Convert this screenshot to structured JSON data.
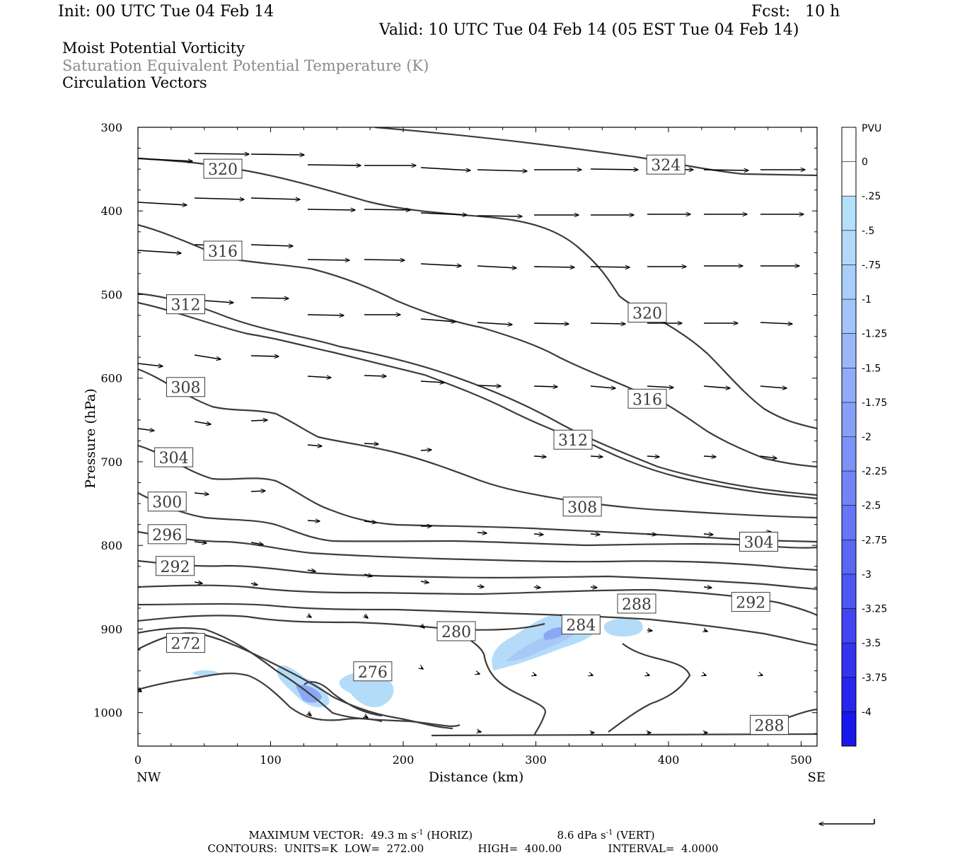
{
  "header": {
    "init": "Init: 00 UTC Tue 04 Feb 14",
    "fcst": "Fcst:   10 h",
    "valid": "Valid: 10 UTC Tue 04 Feb 14 (05 EST Tue 04 Feb 14)",
    "field1": "Moist Potential Vorticity",
    "field2": "Saturation Equivalent Potential Temperature (K)",
    "field3": "Circulation Vectors"
  },
  "colors": {
    "contour": "#3c3c3c",
    "fill_light": "#b4dcf8",
    "fill_mid": "#a8c8f8",
    "fill_dark": "#8aa8f4"
  },
  "chart_data": {
    "type": "contour",
    "xlabel": "Distance (km)",
    "ylabel": "Pressure (hPa)",
    "xlim": [
      0,
      512
    ],
    "ylim": [
      1040,
      300
    ],
    "x_ticks": [
      "0",
      "100",
      "200",
      "300",
      "400",
      "500"
    ],
    "y_ticks": [
      "300",
      "400",
      "500",
      "600",
      "700",
      "800",
      "900",
      "1000"
    ],
    "x_end_labels": {
      "left": "NW",
      "right": "SE"
    },
    "colorbar": {
      "unit": "PVU",
      "labels": [
        "0",
        "-.25",
        "-.5",
        "-.75",
        "-1",
        "-1.25",
        "-1.5",
        "-1.75",
        "-2",
        "-2.25",
        "-2.5",
        "-2.75",
        "-3",
        "-3.25",
        "-3.5",
        "-3.75",
        "-4"
      ],
      "colors": [
        "#ffffff",
        "#ffffff",
        "#b4e0fa",
        "#b4d8fa",
        "#aacefa",
        "#a2c4f8",
        "#9ab8f8",
        "#90acf8",
        "#86a0f8",
        "#7c92f6",
        "#7284f6",
        "#6676f6",
        "#5a66f4",
        "#4e56f4",
        "#4246f2",
        "#3434f0",
        "#2626ee",
        "#1818ea"
      ]
    },
    "contour_labels": [
      {
        "text": "324",
        "x": 398,
        "y": 345
      },
      {
        "text": "320",
        "x": 64,
        "y": 350
      },
      {
        "text": "320",
        "x": 384,
        "y": 522
      },
      {
        "text": "316",
        "x": 64,
        "y": 448
      },
      {
        "text": "316",
        "x": 384,
        "y": 625
      },
      {
        "text": "312",
        "x": 36,
        "y": 512
      },
      {
        "text": "312",
        "x": 328,
        "y": 674
      },
      {
        "text": "308",
        "x": 36,
        "y": 611
      },
      {
        "text": "308",
        "x": 335,
        "y": 754
      },
      {
        "text": "304",
        "x": 27,
        "y": 695
      },
      {
        "text": "304",
        "x": 468,
        "y": 796
      },
      {
        "text": "300",
        "x": 22,
        "y": 748
      },
      {
        "text": "296",
        "x": 22,
        "y": 787
      },
      {
        "text": "292",
        "x": 28,
        "y": 825
      },
      {
        "text": "292",
        "x": 462,
        "y": 868
      },
      {
        "text": "288",
        "x": 376,
        "y": 870
      },
      {
        "text": "288",
        "x": 476,
        "y": 1015
      },
      {
        "text": "284",
        "x": 334,
        "y": 895
      },
      {
        "text": "280",
        "x": 240,
        "y": 903
      },
      {
        "text": "276",
        "x": 177,
        "y": 951
      },
      {
        "text": "272",
        "x": 36,
        "y": 917
      }
    ],
    "max_vector": {
      "label": "MAXIMUM VECTOR:",
      "horiz": "49.3 m s",
      "horiz_unit": "(HORIZ)",
      "vert": "8.6 dPa s",
      "vert_unit": "(VERT)",
      "exp": "-1"
    },
    "contour_info": {
      "label": "CONTOURS:",
      "units": "UNITS=K",
      "low": "LOW=",
      "low_val": "272.00",
      "high": "HIGH=",
      "high_val": "400.00",
      "interval": "INTERVAL=",
      "interval_val": "4.0000"
    }
  }
}
